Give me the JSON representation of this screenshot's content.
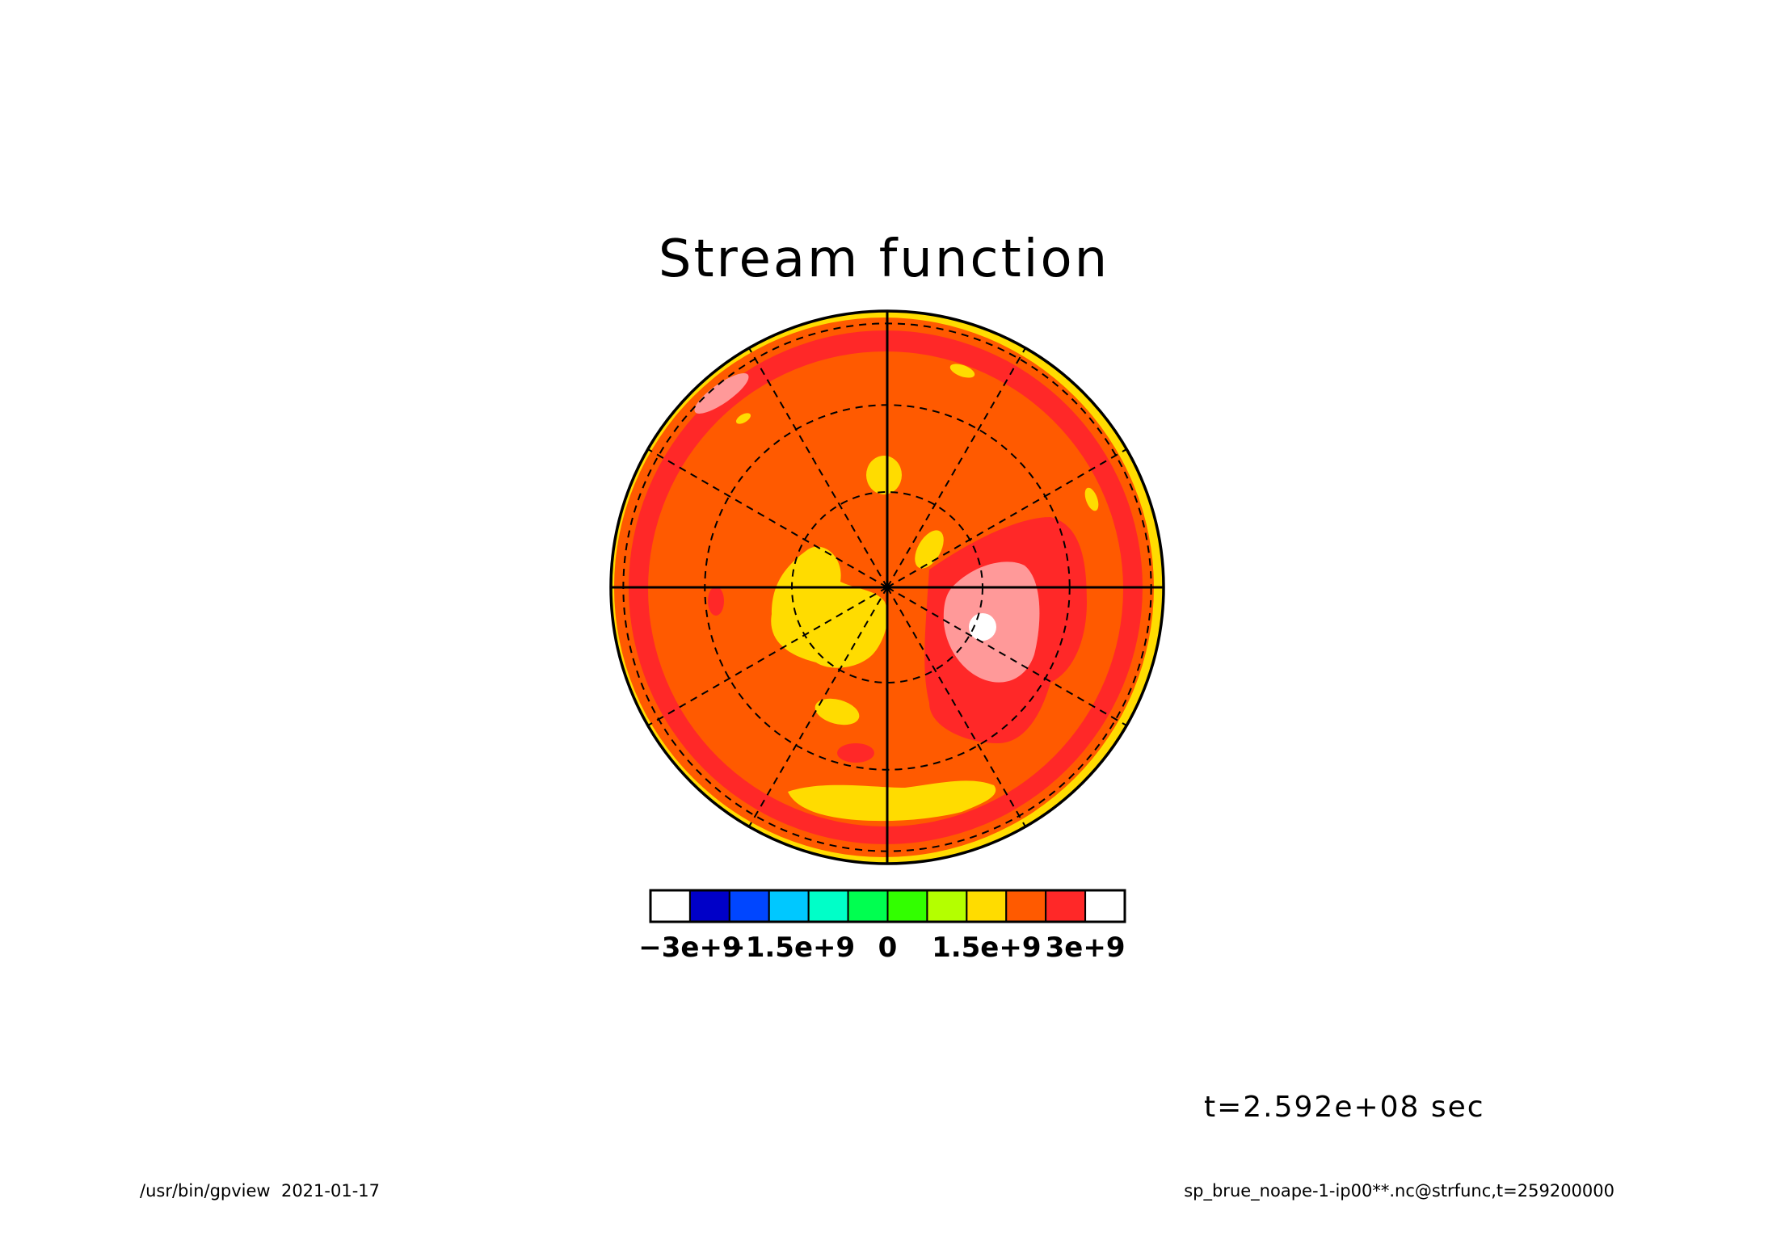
{
  "chart_data": {
    "type": "heatmap",
    "projection": "polar stereographic",
    "title": "Stream function",
    "variable": "strfunc",
    "time_label": "t=2.592e+08 sec",
    "colorbar": {
      "vmin": -3000000000.0,
      "vmax": 3000000000.0,
      "step": 500000000.0,
      "tick_values": [
        -3000000000.0,
        -1500000000.0,
        0,
        1500000000.0,
        3000000000.0
      ],
      "tick_labels": [
        "−3e+9",
        "−1.5e+9",
        "0",
        "1.5e+9",
        "3e+9"
      ],
      "colors": [
        "#ffffff",
        "#0000c8",
        "#0046ff",
        "#00c8ff",
        "#00ffc8",
        "#00ff50",
        "#32ff00",
        "#b4ff00",
        "#ffdc00",
        "#ff5a00",
        "#ff2828",
        "#ffffff"
      ]
    },
    "fill_colors": {
      "outer_band": "#ffdc00",
      "rim": "#ff5a00",
      "ring": "#ff2828",
      "interior": "#ff5a00",
      "low_patch": "#ffdc00",
      "high_patch": "#ff2828",
      "high_core": "#ff9999",
      "high_center": "#ffffff"
    }
  },
  "footer": {
    "left": "/usr/bin/gpview  2021-01-17",
    "right": "sp_brue_noape-1-ip00**.nc@strfunc,t=259200000"
  }
}
